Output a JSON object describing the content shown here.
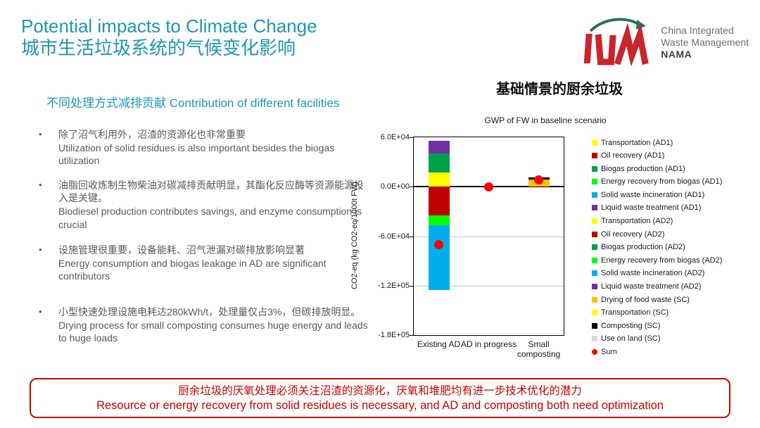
{
  "slide": {
    "title_en": "Potential impacts to Climate Change",
    "title_zh": "城市生活垃圾系统的气候变化影响"
  },
  "logo": {
    "org_line1": "China Integrated",
    "org_line2": "Waste Management",
    "org_line3": "NAMA",
    "brand_red": "#C9252C",
    "arc_green": "#2E6F5E"
  },
  "left_panel": {
    "subtitle": "不同处理方式减排贡献 Contribution of different facilities",
    "bullets": [
      {
        "zh": "除了沼气利用外，沼渣的资源化也非常重要",
        "en": "Utilization of solid residues is also important besides the biogas utilization"
      },
      {
        "zh": "油脂回收炼制生物柴油对碳减排贡献明显，其酯化反应酶等资源能源投入是关键。",
        "en": "Biodiesel production contributes savings, and enzyme consumption is crucial"
      },
      {
        "zh": "设施管理很重要，设备能耗、沼气泄漏对碳排放影响显著",
        "en": "Energy consumption and biogas leakage in AD are significant contributors"
      },
      {
        "zh": "小型快速处理设施电耗达280kWh/t，处理量仅占3%，但碳排放明显。",
        "en": "Drying process for small composting consumes huge energy and leads to huge loads"
      }
    ]
  },
  "right_panel": {
    "header": "基础情景的厨余垃圾",
    "chart_data": {
      "type": "bar",
      "title": "GWP of FW in baseline scenario",
      "ylabel": "CO2-eq (kg CO2-eq/1000t FW)",
      "ylim": [
        -180000,
        60000
      ],
      "grid": "horizontal",
      "legend_position": "right",
      "yticks": [
        {
          "label": "6.0E+04",
          "value": 60000
        },
        {
          "label": "0.0E+00",
          "value": 0
        },
        {
          "label": "-6.0E+04",
          "value": -60000
        },
        {
          "label": "-1.2E+05",
          "value": -120000
        },
        {
          "label": "-1.8E+05",
          "value": -180000
        }
      ],
      "categories": [
        "Existing AD",
        "AD in progress",
        "Small composting"
      ],
      "bars": [
        {
          "category": "Existing AD",
          "segments": [
            {
              "name": "Transportation (AD1)",
              "color": "#FFFF00",
              "value": 17000
            },
            {
              "name": "Biogas production (AD1)",
              "color": "#00A14B",
              "value": 23000
            },
            {
              "name": "Liquid waste treatment (AD1)",
              "color": "#7030A0",
              "value": 16000
            },
            {
              "name": "Oil recovery (AD1)",
              "color": "#C00000",
              "value": -35000
            },
            {
              "name": "Energy recovery from biogas (AD1)",
              "color": "#00FF00",
              "value": -12000
            },
            {
              "name": "Solid waste incineration (AD1)",
              "color": "#00AEEF",
              "value": -78000
            }
          ],
          "sum": -70000
        },
        {
          "category": "AD in progress",
          "segments": [],
          "sum": -500
        },
        {
          "category": "Small composting",
          "segments": [
            {
              "name": "Drying of food waste (SC)",
              "color": "#FFC000",
              "value": 9000
            },
            {
              "name": "Composting (SC)",
              "color": "#000000",
              "value": 2000
            }
          ],
          "sum": 8600
        }
      ],
      "legend": [
        {
          "label": "Transportation (AD1)",
          "color": "#FFFF00",
          "marker": "square"
        },
        {
          "label": "Oil recovery (AD1)",
          "color": "#C00000",
          "marker": "square"
        },
        {
          "label": "Biogas production (AD1)",
          "color": "#00A14B",
          "marker": "square"
        },
        {
          "label": "Energy recovery from biogas (AD1)",
          "color": "#00FF00",
          "marker": "square"
        },
        {
          "label": "Solid waste incineration (AD1)",
          "color": "#00AEEF",
          "marker": "square"
        },
        {
          "label": "Liquid waste treatment (AD1)",
          "color": "#7030A0",
          "marker": "square"
        },
        {
          "label": "Transportation (AD2)",
          "color": "#FFFF00",
          "marker": "square"
        },
        {
          "label": "Oil recovery (AD2)",
          "color": "#C00000",
          "marker": "square"
        },
        {
          "label": "Biogas production (AD2)",
          "color": "#00A14B",
          "marker": "square"
        },
        {
          "label": "Energy recovery from biogas (AD2)",
          "color": "#00FF00",
          "marker": "square"
        },
        {
          "label": "Solid waste incineration (AD2)",
          "color": "#00AEEF",
          "marker": "square"
        },
        {
          "label": "Liquid waste treatment (AD2)",
          "color": "#7030A0",
          "marker": "square"
        },
        {
          "label": "Drying of food waste (SC)",
          "color": "#FFC000",
          "marker": "square"
        },
        {
          "label": "Transportation (SC)",
          "color": "#FFFF00",
          "marker": "square"
        },
        {
          "label": "Composting (SC)",
          "color": "#000000",
          "marker": "square"
        },
        {
          "label": "Use on land (SC)",
          "color": "#D9D9D9",
          "marker": "square"
        },
        {
          "label": "Sum",
          "color": "#FF0000",
          "marker": "circle"
        }
      ]
    }
  },
  "banner": {
    "zh": "厨余垃圾的厌氧处理必须关注沼渣的资源化，厌氧和堆肥均有进一步技术优化的潜力",
    "en": "Resource or energy recovery from solid residues is necessary, and AD and composting both need optimization"
  }
}
